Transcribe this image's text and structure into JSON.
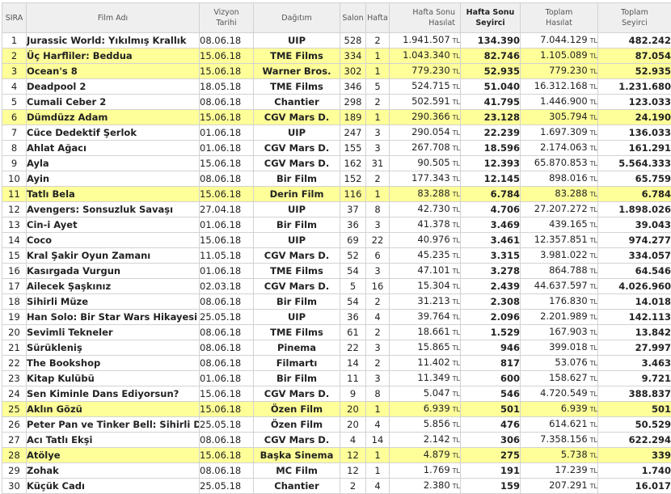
{
  "headers": {
    "rank": "SIRA",
    "film": "Film Adı",
    "release_1": "Vizyon",
    "release_2": "Tarihi",
    "distributor": "Dağıtım",
    "screens": "Salon",
    "week": "Hafta",
    "weekend_gross_1": "Hafta Sonu",
    "weekend_gross_2": "Hasılat",
    "weekend_adm_1": "Hafta Sonu",
    "weekend_adm_2": "Seyirci",
    "total_gross_1": "Toplam",
    "total_gross_2": "Hasılat",
    "total_adm_1": "Toplam",
    "total_adm_2": "Seyirci"
  },
  "currency": "TL",
  "rows": [
    {
      "rank": "1",
      "title": "Jurassic World: Yıkılmış Krallık",
      "date": "08.06.18",
      "dist": "UIP",
      "screens": "528",
      "week": "2",
      "wgross": "1.941.507",
      "wadm": "134.390",
      "tgross": "7.044.129",
      "tadm": "482.242",
      "hl": false
    },
    {
      "rank": "2",
      "title": "Üç Harfliler: Beddua",
      "date": "15.06.18",
      "dist": "TME Films",
      "screens": "334",
      "week": "1",
      "wgross": "1.043.340",
      "wadm": "82.746",
      "tgross": "1.105.089",
      "tadm": "87.054",
      "hl": true
    },
    {
      "rank": "3",
      "title": "Ocean's 8",
      "date": "15.06.18",
      "dist": "Warner Bros.",
      "screens": "302",
      "week": "1",
      "wgross": "779.230",
      "wadm": "52.935",
      "tgross": "779.230",
      "tadm": "52.935",
      "hl": true
    },
    {
      "rank": "4",
      "title": "Deadpool 2",
      "date": "18.05.18",
      "dist": "TME Films",
      "screens": "346",
      "week": "5",
      "wgross": "524.715",
      "wadm": "51.040",
      "tgross": "16.312.168",
      "tadm": "1.231.680",
      "hl": false
    },
    {
      "rank": "5",
      "title": "Cumali Ceber 2",
      "date": "08.06.18",
      "dist": "Chantier",
      "screens": "298",
      "week": "2",
      "wgross": "502.591",
      "wadm": "41.795",
      "tgross": "1.446.900",
      "tadm": "123.033",
      "hl": false
    },
    {
      "rank": "6",
      "title": "Dümdüzz Adam",
      "date": "15.06.18",
      "dist": "CGV Mars D.",
      "screens": "189",
      "week": "1",
      "wgross": "290.366",
      "wadm": "23.128",
      "tgross": "305.794",
      "tadm": "24.190",
      "hl": true
    },
    {
      "rank": "7",
      "title": "Cüce Dedektif Şerlok",
      "date": "01.06.18",
      "dist": "UIP",
      "screens": "247",
      "week": "3",
      "wgross": "290.054",
      "wadm": "22.239",
      "tgross": "1.697.309",
      "tadm": "136.033",
      "hl": false
    },
    {
      "rank": "8",
      "title": "Ahlat Ağacı",
      "date": "01.06.18",
      "dist": "CGV Mars D.",
      "screens": "155",
      "week": "3",
      "wgross": "267.708",
      "wadm": "18.596",
      "tgross": "2.174.063",
      "tadm": "161.291",
      "hl": false
    },
    {
      "rank": "9",
      "title": "Ayla",
      "date": "15.06.18",
      "dist": "CGV Mars D.",
      "screens": "162",
      "week": "31",
      "wgross": "90.505",
      "wadm": "12.393",
      "tgross": "65.870.853",
      "tadm": "5.564.333",
      "hl": false
    },
    {
      "rank": "10",
      "title": "Ayin",
      "date": "08.06.18",
      "dist": "Bir Film",
      "screens": "152",
      "week": "2",
      "wgross": "177.343",
      "wadm": "12.145",
      "tgross": "898.016",
      "tadm": "65.759",
      "hl": false
    },
    {
      "rank": "11",
      "title": "Tatlı Bela",
      "date": "15.06.18",
      "dist": "Derin Film",
      "screens": "116",
      "week": "1",
      "wgross": "83.288",
      "wadm": "6.784",
      "tgross": "83.288",
      "tadm": "6.784",
      "hl": true
    },
    {
      "rank": "12",
      "title": "Avengers: Sonsuzluk Savaşı",
      "date": "27.04.18",
      "dist": "UIP",
      "screens": "37",
      "week": "8",
      "wgross": "42.730",
      "wadm": "4.706",
      "tgross": "27.207.272",
      "tadm": "1.898.026",
      "hl": false
    },
    {
      "rank": "13",
      "title": "Cin-i Ayet",
      "date": "01.06.18",
      "dist": "Bir Film",
      "screens": "36",
      "week": "3",
      "wgross": "41.378",
      "wadm": "3.469",
      "tgross": "439.165",
      "tadm": "39.043",
      "hl": false
    },
    {
      "rank": "14",
      "title": "Coco",
      "date": "15.06.18",
      "dist": "UIP",
      "screens": "69",
      "week": "22",
      "wgross": "40.976",
      "wadm": "3.461",
      "tgross": "12.357.851",
      "tadm": "974.277",
      "hl": false
    },
    {
      "rank": "15",
      "title": "Kral Şakir Oyun Zamanı",
      "date": "11.05.18",
      "dist": "CGV Mars D.",
      "screens": "52",
      "week": "6",
      "wgross": "45.235",
      "wadm": "3.315",
      "tgross": "3.981.022",
      "tadm": "334.057",
      "hl": false
    },
    {
      "rank": "16",
      "title": "Kasırgada Vurgun",
      "date": "01.06.18",
      "dist": "TME Films",
      "screens": "54",
      "week": "3",
      "wgross": "47.101",
      "wadm": "3.278",
      "tgross": "864.788",
      "tadm": "64.546",
      "hl": false
    },
    {
      "rank": "17",
      "title": "Ailecek Şaşkınız",
      "date": "02.03.18",
      "dist": "CGV Mars D.",
      "screens": "5",
      "week": "16",
      "wgross": "15.304",
      "wadm": "2.439",
      "tgross": "44.637.597",
      "tadm": "4.026.960",
      "hl": false
    },
    {
      "rank": "18",
      "title": "Sihirli Müze",
      "date": "08.06.18",
      "dist": "Bir Film",
      "screens": "54",
      "week": "2",
      "wgross": "31.213",
      "wadm": "2.308",
      "tgross": "176.830",
      "tadm": "14.018",
      "hl": false
    },
    {
      "rank": "19",
      "title": "Han Solo: Bir Star Wars Hikayesi",
      "date": "25.05.18",
      "dist": "UIP",
      "screens": "36",
      "week": "4",
      "wgross": "39.764",
      "wadm": "2.096",
      "tgross": "2.201.989",
      "tadm": "142.113",
      "hl": false
    },
    {
      "rank": "20",
      "title": "Sevimli Tekneler",
      "date": "08.06.18",
      "dist": "TME Films",
      "screens": "61",
      "week": "2",
      "wgross": "18.661",
      "wadm": "1.529",
      "tgross": "167.903",
      "tadm": "13.842",
      "hl": false
    },
    {
      "rank": "21",
      "title": "Sürükleniş",
      "date": "08.06.18",
      "dist": "Pinema",
      "screens": "22",
      "week": "3",
      "wgross": "15.865",
      "wadm": "946",
      "tgross": "399.018",
      "tadm": "27.997",
      "hl": false
    },
    {
      "rank": "22",
      "title": "The Bookshop",
      "date": "08.06.18",
      "dist": "Filmartı",
      "screens": "14",
      "week": "2",
      "wgross": "11.402",
      "wadm": "817",
      "tgross": "53.076",
      "tadm": "3.463",
      "hl": false
    },
    {
      "rank": "23",
      "title": "Kitap Kulübü",
      "date": "01.06.18",
      "dist": "Bir Film",
      "screens": "11",
      "week": "3",
      "wgross": "11.349",
      "wadm": "600",
      "tgross": "158.627",
      "tadm": "9.721",
      "hl": false
    },
    {
      "rank": "24",
      "title": "Sen Kiminle Dans Ediyorsun?",
      "date": "15.06.18",
      "dist": "CGV Mars D.",
      "screens": "9",
      "week": "8",
      "wgross": "5.047",
      "wadm": "546",
      "tgross": "4.720.549",
      "tadm": "388.837",
      "hl": false
    },
    {
      "rank": "25",
      "title": "Aklın Gözü",
      "date": "15.06.18",
      "dist": "Özen Film",
      "screens": "20",
      "week": "1",
      "wgross": "6.939",
      "wadm": "501",
      "tgross": "6.939",
      "tadm": "501",
      "hl": true
    },
    {
      "rank": "26",
      "title": "Peter Pan ve Tinker Bell: Sihirli Dünya",
      "date": "25.05.18",
      "dist": "Özen Film",
      "screens": "20",
      "week": "4",
      "wgross": "5.856",
      "wadm": "476",
      "tgross": "614.621",
      "tadm": "50.529",
      "hl": false
    },
    {
      "rank": "27",
      "title": "Acı Tatlı Ekşi",
      "date": "08.06.18",
      "dist": "CGV Mars D.",
      "screens": "4",
      "week": "14",
      "wgross": "2.142",
      "wadm": "306",
      "tgross": "7.358.156",
      "tadm": "622.294",
      "hl": false
    },
    {
      "rank": "28",
      "title": "Atölye",
      "date": "15.06.18",
      "dist": "Başka Sinema",
      "screens": "12",
      "week": "1",
      "wgross": "4.879",
      "wadm": "275",
      "tgross": "5.738",
      "tadm": "339",
      "hl": true
    },
    {
      "rank": "29",
      "title": "Zohak",
      "date": "08.06.18",
      "dist": "MC Film",
      "screens": "12",
      "week": "1",
      "wgross": "1.769",
      "wadm": "191",
      "tgross": "17.239",
      "tadm": "1.740",
      "hl": false
    },
    {
      "rank": "30",
      "title": "Küçük Cadı",
      "date": "25.05.18",
      "dist": "Chantier",
      "screens": "2",
      "week": "4",
      "wgross": "2.380",
      "wadm": "159",
      "tgross": "207.291",
      "tadm": "16.017",
      "hl": false
    }
  ]
}
